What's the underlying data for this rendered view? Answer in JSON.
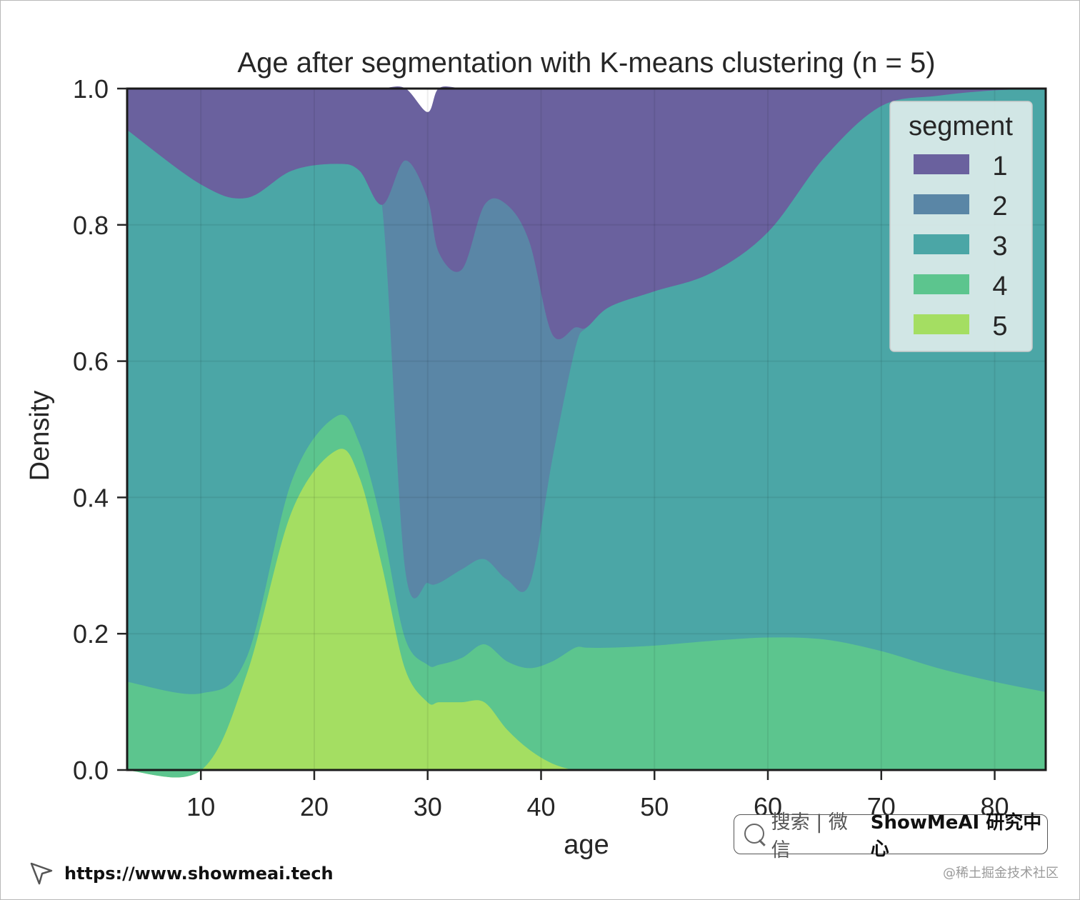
{
  "chart_data": {
    "type": "area",
    "stacked": "fill",
    "title": "Age after segmentation with K-means clustering (n = 5)",
    "xlabel": "age",
    "ylabel": "Density",
    "xlim": [
      3.5,
      84.5
    ],
    "ylim": [
      0,
      1
    ],
    "xticks": [
      10,
      20,
      30,
      40,
      50,
      60,
      70,
      80
    ],
    "yticks": [
      0.0,
      0.2,
      0.4,
      0.6,
      0.8,
      1.0
    ],
    "ytick_labels": [
      "0.0",
      "0.2",
      "0.4",
      "0.6",
      "0.8",
      "1.0"
    ],
    "grid": true,
    "legend": {
      "title": "segment",
      "placement": "top-right",
      "entries": [
        "1",
        "2",
        "3",
        "4",
        "5"
      ]
    },
    "x": [
      3.5,
      10,
      14,
      18,
      22,
      24,
      26,
      28,
      30,
      31,
      33,
      35,
      37,
      39,
      41,
      43,
      44,
      46,
      50,
      55,
      60,
      65,
      70,
      75,
      80,
      84.5
    ],
    "series": [
      {
        "name": "5",
        "color": "#a4de62",
        "values": [
          0,
          0,
          0.14,
          0.38,
          0.47,
          0.43,
          0.3,
          0.15,
          0.1,
          0.1,
          0.1,
          0.1,
          0.06,
          0.03,
          0.01,
          0,
          0,
          0,
          0,
          0,
          0,
          0,
          0,
          0,
          0,
          0
        ]
      },
      {
        "name": "4",
        "color": "#5cc58e",
        "values": [
          0.13,
          0.113,
          0.025,
          0.045,
          0.05,
          0.05,
          0.06,
          0.045,
          0.055,
          0.055,
          0.065,
          0.085,
          0.1,
          0.12,
          0.15,
          0.18,
          0.18,
          0.18,
          0.183,
          0.19,
          0.195,
          0.192,
          0.175,
          0.15,
          0.13,
          0.115
        ]
      },
      {
        "name": "3",
        "color": "#4ba6a6",
        "values": [
          0.81,
          0.747,
          0.675,
          0.455,
          0.37,
          0.4,
          0.47,
          0.105,
          0.12,
          0.12,
          0.13,
          0.125,
          0.12,
          0.125,
          0.3,
          0.44,
          0.47,
          0.5,
          0.52,
          0.54,
          0.595,
          0.708,
          0.8,
          0.84,
          0.868,
          0.885
        ]
      },
      {
        "name": "2",
        "color": "#5a86a6",
        "values": [
          0,
          0,
          0,
          0,
          0,
          0,
          0,
          0.595,
          0.565,
          0.485,
          0.44,
          0.52,
          0.55,
          0.5,
          0.18,
          0.03,
          0,
          0,
          0,
          0,
          0,
          0,
          0,
          0,
          0,
          0
        ]
      },
      {
        "name": "1",
        "color": "#6a619e",
        "values": [
          0.06,
          0.14,
          0.16,
          0.12,
          0.11,
          0.12,
          0.17,
          0.105,
          0.125,
          0.24,
          0.265,
          0.17,
          0.23,
          0.225,
          0.36,
          0.35,
          0.35,
          0.32,
          0.297,
          0.27,
          0.21,
          0.1,
          0.025,
          0.01,
          0.002,
          0
        ]
      }
    ]
  },
  "watermark": {
    "search_label": "搜索 | 微信",
    "brand": "ShowMeAI 研究中心",
    "url": "https://www.showmeai.tech",
    "juejin": "@稀土掘金技术社区"
  }
}
